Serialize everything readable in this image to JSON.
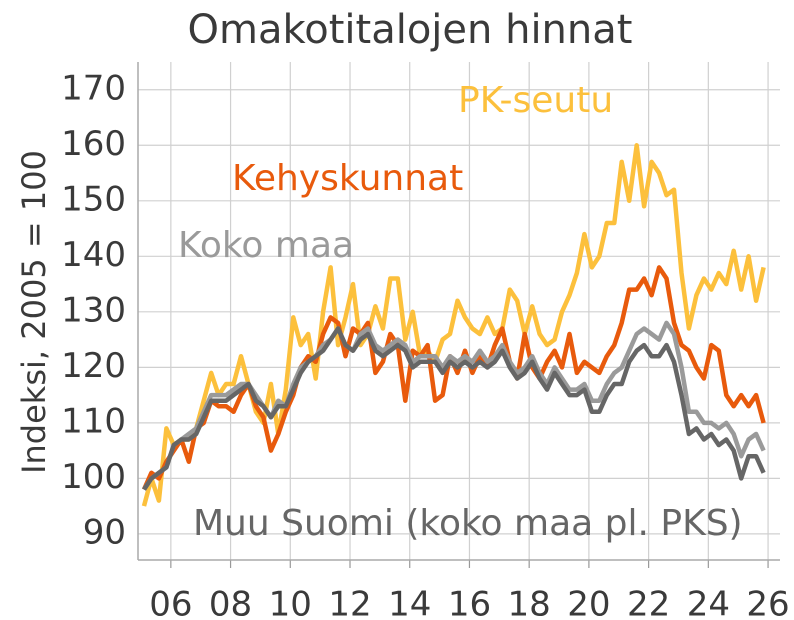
{
  "chart_data": {
    "type": "line",
    "title": "Omakotitalojen hinnat",
    "y_label": "Indeksi, 2005 = 100",
    "x": [
      2005.1,
      2005.35,
      2005.6,
      2005.85,
      2006.1,
      2006.35,
      2006.6,
      2006.85,
      2007.1,
      2007.35,
      2007.6,
      2007.85,
      2008.1,
      2008.35,
      2008.6,
      2008.85,
      2009.1,
      2009.35,
      2009.6,
      2009.85,
      2010.1,
      2010.35,
      2010.6,
      2010.85,
      2011.1,
      2011.35,
      2011.6,
      2011.85,
      2012.1,
      2012.35,
      2012.6,
      2012.85,
      2013.1,
      2013.35,
      2013.6,
      2013.85,
      2014.1,
      2014.35,
      2014.6,
      2014.85,
      2015.1,
      2015.35,
      2015.6,
      2015.85,
      2016.1,
      2016.35,
      2016.6,
      2016.85,
      2017.1,
      2017.35,
      2017.6,
      2017.85,
      2018.1,
      2018.35,
      2018.6,
      2018.85,
      2019.1,
      2019.35,
      2019.6,
      2019.85,
      2020.1,
      2020.35,
      2020.6,
      2020.85,
      2021.1,
      2021.35,
      2021.6,
      2021.85,
      2022.1,
      2022.35,
      2022.6,
      2022.85,
      2023.1,
      2023.35,
      2023.6,
      2023.85,
      2024.1,
      2024.35,
      2024.6,
      2024.85,
      2025.1,
      2025.35,
      2025.6,
      2025.85
    ],
    "series": [
      {
        "name": "PK-seutu",
        "color": "#fcc03c",
        "values": [
          95,
          100,
          96,
          109,
          106,
          107,
          107,
          109,
          114,
          119,
          115,
          117,
          117,
          122,
          117,
          112,
          110,
          117,
          108,
          116,
          129,
          124,
          126,
          118,
          130,
          138,
          124,
          129,
          135,
          124,
          126,
          131,
          127,
          136,
          136,
          125,
          130,
          122,
          123,
          121,
          125,
          126,
          132,
          129,
          127,
          126,
          129,
          126,
          127,
          134,
          132,
          126,
          131,
          126,
          124,
          125,
          130,
          133,
          137,
          144,
          138,
          140,
          146,
          146,
          157,
          150,
          160,
          149,
          157,
          155,
          151,
          152,
          137,
          127,
          133,
          136,
          134,
          137,
          135,
          141,
          134,
          140,
          132,
          138
        ]
      },
      {
        "name": "Kehyskunnat",
        "color": "#e85a0c",
        "values": [
          98,
          101,
          100,
          103,
          105,
          107,
          103,
          109,
          110,
          114,
          113,
          113,
          112,
          115,
          117,
          113,
          111,
          105,
          108,
          112,
          115,
          120,
          122,
          121,
          126,
          129,
          128,
          122,
          127,
          126,
          128,
          119,
          121,
          126,
          124,
          114,
          123,
          122,
          124,
          114,
          115,
          122,
          119,
          123,
          119,
          122,
          120,
          124,
          127,
          121,
          118,
          126,
          120,
          118,
          121,
          123,
          120,
          126,
          119,
          121,
          120,
          119,
          122,
          124,
          128,
          134,
          134,
          136,
          133,
          138,
          136,
          128,
          124,
          123,
          120,
          118,
          124,
          123,
          115,
          113,
          115,
          113,
          115,
          110
        ]
      },
      {
        "name": "Koko maa",
        "color": "#9a9a9a",
        "values": [
          98,
          100,
          101,
          102,
          106,
          107,
          108,
          109,
          112,
          115,
          115,
          115,
          116,
          117,
          117,
          115,
          113,
          111,
          114,
          113,
          117,
          120,
          121,
          122,
          124,
          125,
          127,
          124,
          123,
          126,
          127,
          124,
          123,
          124,
          125,
          124,
          121,
          122,
          122,
          122,
          120,
          122,
          121,
          122,
          121,
          123,
          121,
          122,
          124,
          121,
          119,
          120,
          122,
          119,
          117,
          120,
          118,
          116,
          116,
          117,
          114,
          114,
          117,
          119,
          120,
          123,
          126,
          127,
          126,
          125,
          128,
          126,
          120,
          112,
          112,
          110,
          110,
          109,
          110,
          108,
          104,
          107,
          108,
          105
        ]
      },
      {
        "name": "Muu Suomi (koko maa pl. PKS)",
        "color": "#666666",
        "values": [
          98,
          100,
          101,
          102,
          106,
          107,
          107,
          108,
          111,
          114,
          114,
          114,
          115,
          116,
          117,
          114,
          113,
          111,
          113,
          113,
          116,
          119,
          121,
          122,
          123,
          125,
          127,
          124,
          123,
          125,
          126,
          123,
          122,
          123,
          124,
          123,
          120,
          121,
          121,
          121,
          119,
          121,
          120,
          121,
          120,
          121,
          120,
          121,
          123,
          120,
          118,
          119,
          121,
          118,
          116,
          119,
          117,
          115,
          115,
          116,
          112,
          112,
          115,
          117,
          117,
          121,
          123,
          124,
          122,
          122,
          124,
          121,
          115,
          108,
          109,
          107,
          108,
          106,
          107,
          105,
          100,
          104,
          104,
          101
        ]
      }
    ],
    "xlim": [
      2004.9,
      2026.4
    ],
    "xticks": [
      {
        "value": 2006,
        "label": "06"
      },
      {
        "value": 2008,
        "label": "08"
      },
      {
        "value": 2010,
        "label": "10"
      },
      {
        "value": 2012,
        "label": "12"
      },
      {
        "value": 2014,
        "label": "14"
      },
      {
        "value": 2016,
        "label": "16"
      },
      {
        "value": 2018,
        "label": "18"
      },
      {
        "value": 2020,
        "label": "20"
      },
      {
        "value": 2022,
        "label": "22"
      },
      {
        "value": 2024,
        "label": "24"
      },
      {
        "value": 2026,
        "label": "26"
      }
    ],
    "ylim": [
      85.3,
      175
    ],
    "yticks": [
      90,
      100,
      110,
      120,
      130,
      140,
      150,
      160,
      170
    ],
    "grid": true
  }
}
